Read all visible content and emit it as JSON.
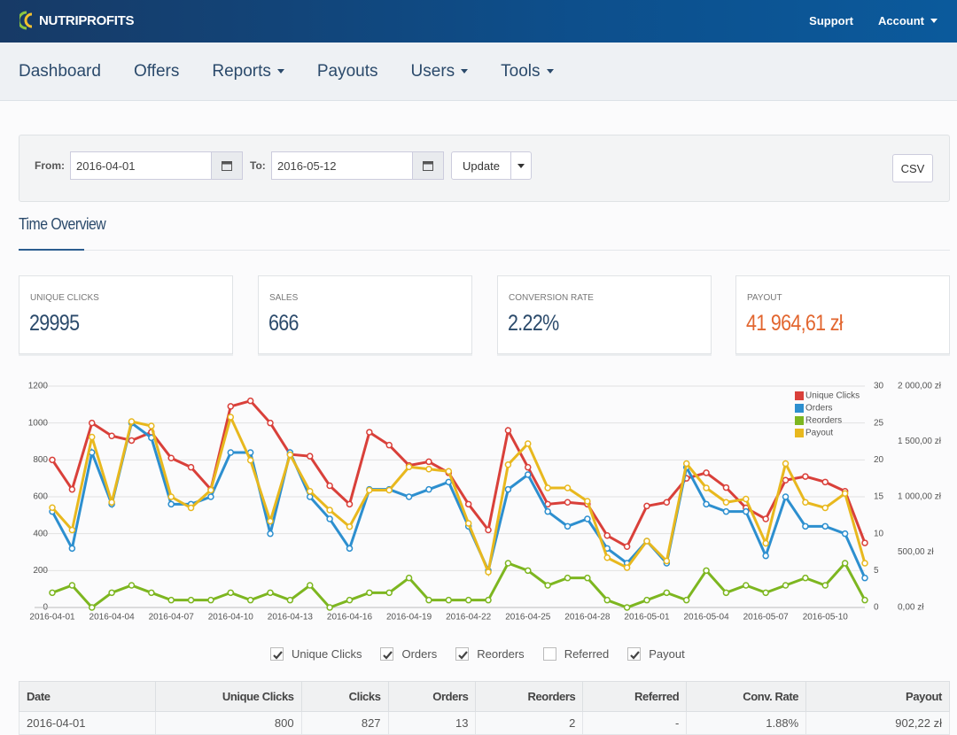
{
  "header": {
    "logo": "NUTRIPROFITS",
    "links": [
      {
        "label": "Support",
        "dropdown": false
      },
      {
        "label": "Account",
        "dropdown": true
      }
    ]
  },
  "nav": [
    {
      "label": "Dashboard",
      "dropdown": false
    },
    {
      "label": "Offers",
      "dropdown": false
    },
    {
      "label": "Reports",
      "dropdown": true
    },
    {
      "label": "Payouts",
      "dropdown": false
    },
    {
      "label": "Users",
      "dropdown": true
    },
    {
      "label": "Tools",
      "dropdown": true
    }
  ],
  "filters": {
    "from_label": "From:",
    "from": "2016-04-01",
    "to_label": "To:",
    "to": "2016-05-12",
    "update": "Update",
    "csv": "CSV"
  },
  "section_title": "Time Overview",
  "stats": [
    {
      "label": "UNIQUE CLICKS",
      "value": "29995"
    },
    {
      "label": "SALES",
      "value": "666"
    },
    {
      "label": "CONVERSION RATE",
      "value": "2.22%"
    },
    {
      "label": "PAYOUT",
      "value": "41 964,61 zł",
      "highlight": true
    }
  ],
  "chart_data": {
    "type": "line",
    "categories": [
      "2016-04-01",
      null,
      null,
      "2016-04-04",
      null,
      null,
      "2016-04-07",
      null,
      null,
      "2016-04-10",
      null,
      null,
      "2016-04-13",
      null,
      null,
      "2016-04-16",
      null,
      null,
      "2016-04-19",
      null,
      null,
      "2016-04-22",
      null,
      null,
      "2016-04-25",
      null,
      null,
      "2016-04-28",
      null,
      null,
      "2016-05-01",
      null,
      null,
      "2016-05-04",
      null,
      null,
      "2016-05-07",
      null,
      null,
      "2016-05-10",
      null,
      null
    ],
    "series": [
      {
        "name": "Unique Clicks",
        "color": "#d9403a",
        "axis": "y",
        "values": [
          800,
          640,
          1000,
          930,
          905,
          950,
          810,
          760,
          640,
          1090,
          1120,
          1000,
          830,
          820,
          660,
          560,
          950,
          880,
          770,
          790,
          730,
          560,
          420,
          960,
          760,
          560,
          570,
          560,
          390,
          330,
          550,
          570,
          700,
          730,
          650,
          540,
          480,
          690,
          710,
          680,
          630,
          350
        ]
      },
      {
        "name": "Orders",
        "color": "#2d8fcf",
        "axis": "y2",
        "values": [
          13,
          8,
          21,
          14,
          25,
          23,
          14,
          14,
          15,
          21,
          21,
          10,
          21,
          15,
          12,
          8,
          16,
          16,
          15,
          16,
          17,
          11,
          5,
          16,
          18,
          13,
          11,
          12,
          8,
          6,
          9,
          6,
          19,
          14,
          13,
          13,
          7,
          15,
          11,
          11,
          10,
          4
        ]
      },
      {
        "name": "Reorders",
        "color": "#7db620",
        "axis": "y2",
        "values": [
          2,
          3,
          0,
          2,
          3,
          2,
          1,
          1,
          1,
          2,
          1,
          2,
          1,
          3,
          0,
          1,
          2,
          2,
          4,
          1,
          1,
          1,
          1,
          6,
          5,
          3,
          4,
          4,
          1,
          0,
          1,
          2,
          1,
          5,
          2,
          3,
          2,
          3,
          4,
          3,
          6,
          1
        ]
      },
      {
        "name": "Payout",
        "color": "#e8b81e",
        "axis": "y3",
        "values": [
          902,
          700,
          1540,
          950,
          1680,
          1640,
          1000,
          900,
          1060,
          1720,
          1330,
          780,
          1380,
          1050,
          880,
          730,
          1060,
          1060,
          1270,
          1250,
          1230,
          760,
          320,
          1290,
          1480,
          1080,
          1080,
          960,
          450,
          360,
          600,
          420,
          1300,
          1080,
          950,
          980,
          580,
          1300,
          950,
          900,
          1030,
          400
        ]
      }
    ],
    "ylim": [
      0,
      1200
    ],
    "yticks": [
      0,
      200,
      400,
      600,
      800,
      1000,
      1200
    ],
    "y2lim": [
      0,
      30
    ],
    "y2ticks": [
      0,
      5,
      10,
      15,
      20,
      25,
      30
    ],
    "y3lim": [
      0,
      2000
    ],
    "y3ticks": [
      {
        "value": 0,
        "label": "0,00 zł"
      },
      {
        "value": 500,
        "label": "500,00 zł"
      },
      {
        "value": 1000,
        "label": "1 000,00 zł"
      },
      {
        "value": 1500,
        "label": "1 500,00 zł"
      },
      {
        "value": 2000,
        "label": "2 000,00 zł"
      }
    ],
    "grid": true,
    "legend": "top-right"
  },
  "toggles": [
    {
      "label": "Unique Clicks",
      "checked": true
    },
    {
      "label": "Orders",
      "checked": true
    },
    {
      "label": "Reorders",
      "checked": true
    },
    {
      "label": "Referred",
      "checked": false
    },
    {
      "label": "Payout",
      "checked": true
    }
  ],
  "table": {
    "columns": [
      "Date",
      "Unique Clicks",
      "Clicks",
      "Orders",
      "Reorders",
      "Referred",
      "Conv. Rate",
      "Payout"
    ],
    "rows": [
      [
        "2016-04-01",
        "800",
        "827",
        "13",
        "2",
        "-",
        "1.88%",
        "902,22 zł"
      ]
    ]
  }
}
